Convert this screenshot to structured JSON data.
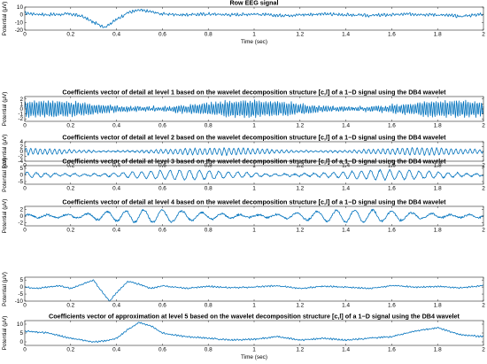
{
  "chart_data": [
    {
      "type": "line",
      "title": "Row EEG signal",
      "xlabel": "Time (sec)",
      "ylabel": "Potential (μV)",
      "xlim": [
        0,
        2
      ],
      "ylim": [
        -20,
        10
      ],
      "xticks": [
        "0",
        "0.2",
        "0.4",
        "0.6",
        "0.8",
        "1",
        "1.2",
        "1.4",
        "1.6",
        "1.8",
        "2"
      ],
      "yticks": [
        "10",
        "0",
        "-10",
        "-20"
      ],
      "grid": false,
      "series": [
        {
          "x": [
            0,
            0.1,
            0.2,
            0.25,
            0.3,
            0.35,
            0.38,
            0.45,
            0.5,
            0.55,
            0.6,
            0.7,
            0.8,
            0.9,
            1.0,
            1.1,
            1.2,
            1.3,
            1.4,
            1.5,
            1.6,
            1.7,
            1.8,
            1.9,
            2.0
          ],
          "y": [
            2,
            0,
            1,
            -2,
            -10,
            -16,
            -10,
            3,
            6,
            4,
            1,
            0,
            1,
            0,
            1,
            -1,
            0,
            1,
            0,
            -1,
            0,
            1,
            0,
            -2,
            1
          ],
          "noise": 2.5
        }
      ]
    },
    {
      "type": "line",
      "title": "Coefficients vector of detail at level 1 based on the wavelet decomposition structure [c,l] of a 1−D signal using the DB4 wavelet",
      "xlabel": "",
      "ylabel": "Potential (μV)",
      "xlim": [
        0,
        2
      ],
      "ylim": [
        -2.5,
        2.5
      ],
      "xticks": [
        "0",
        "0.2",
        "0.4",
        "0.6",
        "0.8",
        "1",
        "1.2",
        "1.4",
        "1.6",
        "1.8",
        "2"
      ],
      "yticks": [
        "2",
        "1",
        "0",
        "-1",
        "-2"
      ],
      "grid": false,
      "series": [
        {
          "amplitude": 1.6,
          "cycles": 200
        }
      ]
    },
    {
      "type": "line",
      "title": "Coefficients vector of detail at level 2 based on the wavelet decomposition structure [c,l] of a 1−D signal using the DB4 wavelet",
      "xlabel": "",
      "ylabel": "Potential (μV)",
      "xlim": [
        0,
        2
      ],
      "ylim": [
        -4,
        4
      ],
      "xticks": [
        "0",
        "0.2",
        "0.4",
        "0.6",
        "0.8",
        "1",
        "1.2",
        "1.4",
        "1.6",
        "1.8",
        "2"
      ],
      "yticks": [
        "4",
        "2",
        "0",
        "-2",
        "-4"
      ],
      "grid": false,
      "series": [
        {
          "amplitude": 1.4,
          "cycles": 95
        }
      ]
    },
    {
      "type": "line",
      "title": "Coefficients vector of detail at level 3 based on the wavelet decomposition structure [c,l] of a 1−D signal using the DB4 wavelet",
      "xlabel": "",
      "ylabel": "Potential (μV)",
      "xlim": [
        0,
        2
      ],
      "ylim": [
        -7,
        7
      ],
      "xticks": [
        "0",
        "0.2",
        "0.4",
        "0.6",
        "0.8",
        "1",
        "1.2",
        "1.4",
        "1.6",
        "1.8",
        "2"
      ],
      "yticks": [
        "5",
        "0",
        "-5"
      ],
      "grid": false,
      "series": [
        {
          "amplitude": 3.5,
          "cycles": 48
        }
      ]
    },
    {
      "type": "line",
      "title": "Coefficients vector of detail at level 4 based on the wavelet decomposition structure [c,l] of a 1−D signal using the DB4 wavelet",
      "xlabel": "",
      "ylabel": "Potential (μV)",
      "xlim": [
        0,
        2
      ],
      "ylim": [
        -3,
        3
      ],
      "xticks": [
        "0",
        "0.2",
        "0.4",
        "0.6",
        "0.8",
        "1",
        "1.2",
        "1.4",
        "1.6",
        "1.8",
        "2"
      ],
      "yticks": [
        "2",
        "0",
        "-2"
      ],
      "grid": false,
      "series": [
        {
          "amplitude": 1.9,
          "cycles": 24
        }
      ]
    },
    {
      "type": "line",
      "title": "",
      "xlabel": "",
      "ylabel": "Potential (μV)",
      "xlim": [
        0,
        2
      ],
      "ylim": [
        -10,
        7
      ],
      "xticks": [
        "0",
        "0.2",
        "0.4",
        "0.6",
        "0.8",
        "1",
        "1.2",
        "1.4",
        "1.6",
        "1.8",
        "2"
      ],
      "yticks": [
        "5",
        "0",
        "-5",
        "-10"
      ],
      "grid": false,
      "series": [
        {
          "x": [
            0,
            0.05,
            0.1,
            0.15,
            0.2,
            0.25,
            0.3,
            0.33,
            0.37,
            0.4,
            0.45,
            0.5,
            0.55,
            0.6,
            0.7,
            0.8,
            0.9,
            1.0,
            1.1,
            1.2,
            1.3,
            1.4,
            1.5,
            1.6,
            1.7,
            1.8,
            1.9,
            2.0
          ],
          "y": [
            0,
            -1,
            0,
            1,
            -1,
            2,
            5,
            -2,
            -10,
            -4,
            4,
            2,
            -1,
            1,
            -1,
            0.5,
            -0.5,
            0,
            1,
            -1,
            0.5,
            0,
            -1,
            1,
            0,
            0.5,
            -0.5,
            1
          ]
        }
      ]
    },
    {
      "type": "line",
      "title": "Coefficients vector of approximation at level 5 based on the wavelet decomposition structure [c,l] of a 1−D signal using the DB4 wavelet",
      "xlabel": "Time (sec)",
      "ylabel": "Potential (μV)",
      "xlim": [
        0,
        2
      ],
      "ylim": [
        -2,
        12
      ],
      "xticks": [
        "0",
        "0.2",
        "0.4",
        "0.6",
        "0.8",
        "1",
        "1.2",
        "1.4",
        "1.6",
        "1.8",
        "2"
      ],
      "yticks": [
        "10",
        "5",
        "0"
      ],
      "grid": false,
      "series": [
        {
          "x": [
            0,
            0.1,
            0.2,
            0.3,
            0.35,
            0.4,
            0.45,
            0.5,
            0.55,
            0.6,
            0.7,
            0.8,
            0.9,
            1.0,
            1.1,
            1.2,
            1.3,
            1.4,
            1.5,
            1.6,
            1.7,
            1.8,
            1.9,
            2.0
          ],
          "y": [
            6,
            5,
            2,
            0,
            0.5,
            2,
            7,
            11,
            9,
            5,
            3,
            2,
            1,
            1.5,
            3,
            1,
            2,
            1,
            2,
            3,
            6,
            8,
            4,
            3
          ]
        }
      ]
    }
  ]
}
